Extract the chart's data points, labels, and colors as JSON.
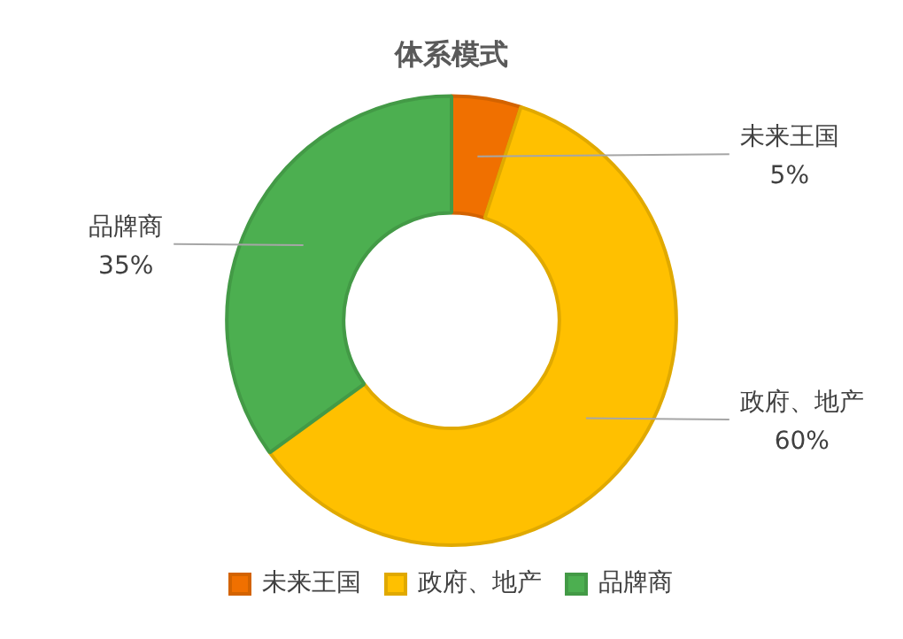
{
  "chart_data": {
    "type": "donut",
    "title": "体系模式",
    "categories": [
      "未来王国",
      "政府、地产",
      "品牌商"
    ],
    "values": [
      5,
      60,
      35
    ],
    "colors": [
      "#f07000",
      "#ffc000",
      "#4caf50"
    ],
    "value_labels": [
      "5%",
      "60%",
      "35%"
    ],
    "legend": "bottom"
  }
}
